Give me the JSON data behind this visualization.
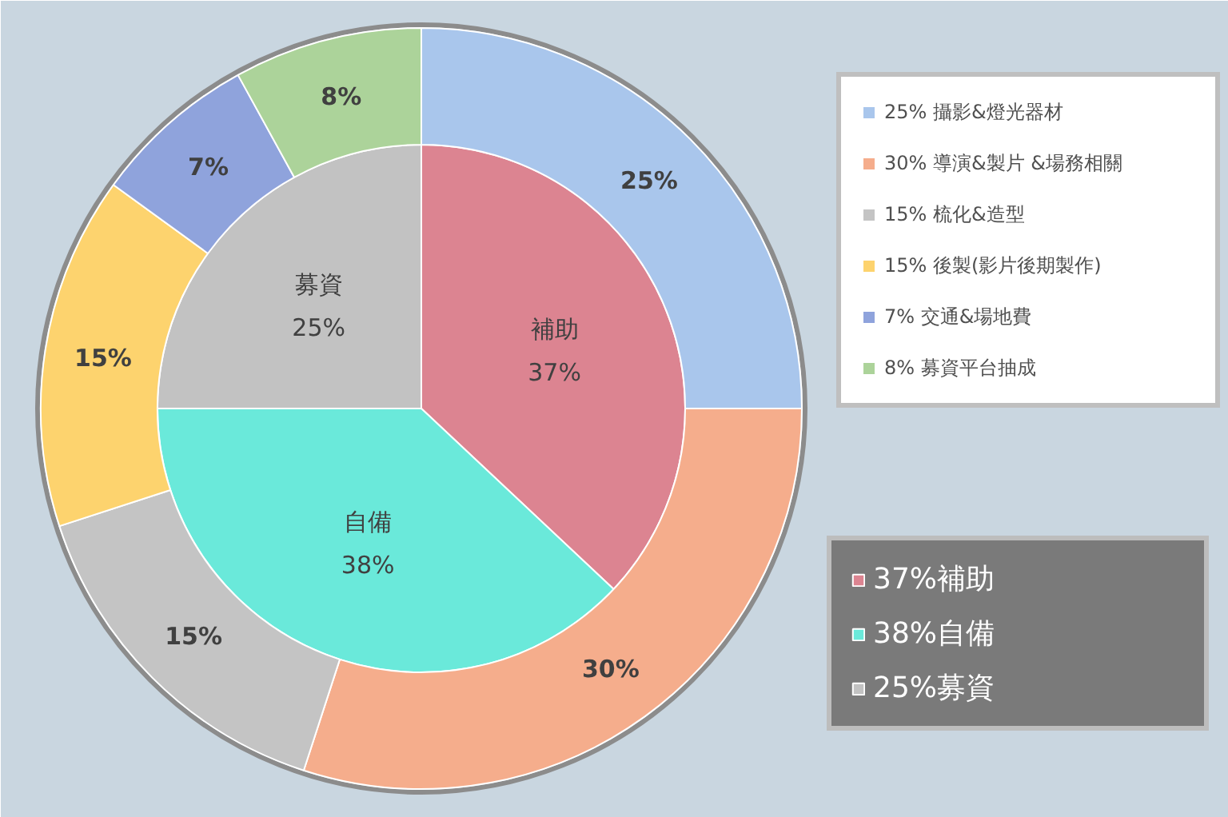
{
  "chart_data": {
    "type": "donut",
    "legend": "right",
    "categories": [
      "37%補助",
      "38%自備",
      "25%募資",
      "25% 攝影&燈光器材",
      "30% 導演&製片 &場務相關",
      "15% 梳化&造型",
      "15% 後製(影片後期製作)",
      "7% 交通&場地費",
      "8% 募資平台抽成"
    ],
    "colors": [
      "#dc8491",
      "#6ae9da",
      "#c2c2c2",
      "#a9c6ec",
      "#f5ad8c",
      "#c4c4c4",
      "#fdd36e",
      "#8fa3dc",
      "#acd39a"
    ],
    "series": [
      {
        "values": [
          37,
          38,
          25,
          null,
          null,
          null,
          null,
          null,
          null
        ],
        "value_labels": [
          "補助\n37%",
          "自備\n38%",
          "募資\n25%",
          null,
          null,
          null,
          null,
          null,
          null
        ]
      },
      {
        "values": [
          null,
          null,
          null,
          25,
          30,
          15,
          15,
          7,
          8
        ],
        "value_labels": [
          null,
          null,
          null,
          "25%",
          "30%",
          "15%",
          "15%",
          "7%",
          "8%"
        ]
      }
    ]
  }
}
